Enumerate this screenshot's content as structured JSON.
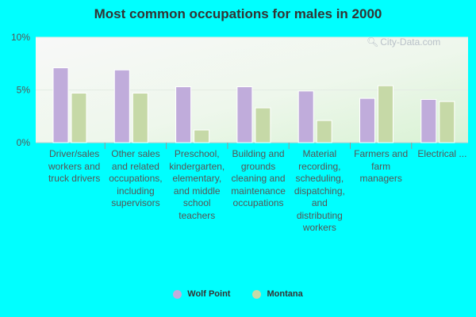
{
  "chart_data": {
    "type": "bar",
    "title": "Most common occupations for males in 2000",
    "categories": [
      "Driver/sales workers and truck drivers",
      "Other sales and related occupations, including supervisors",
      "Preschool, kindergarten, elementary, and middle school teachers",
      "Building and grounds cleaning and maintenance occupations",
      "Material recording, scheduling, dispatching, and distributing workers",
      "Farmers and farm managers",
      "Electrical ..."
    ],
    "series": [
      {
        "name": "Wolf Point",
        "values": [
          7.1,
          6.9,
          5.3,
          5.3,
          4.9,
          4.2,
          4.1
        ]
      },
      {
        "name": "Montana",
        "values": [
          4.7,
          4.7,
          1.2,
          3.3,
          2.1,
          5.4,
          3.9
        ]
      }
    ],
    "yticks": [
      "10%",
      "5%",
      "0%"
    ],
    "ylim": [
      0,
      10
    ],
    "grid": true,
    "legend": "bottom-center"
  },
  "colors": {
    "series": [
      "#c0acdb",
      "#c6d9a7"
    ],
    "background": "#00ffff"
  },
  "watermark": {
    "text": "City-Data.com",
    "icon": "magnifier-icon"
  }
}
